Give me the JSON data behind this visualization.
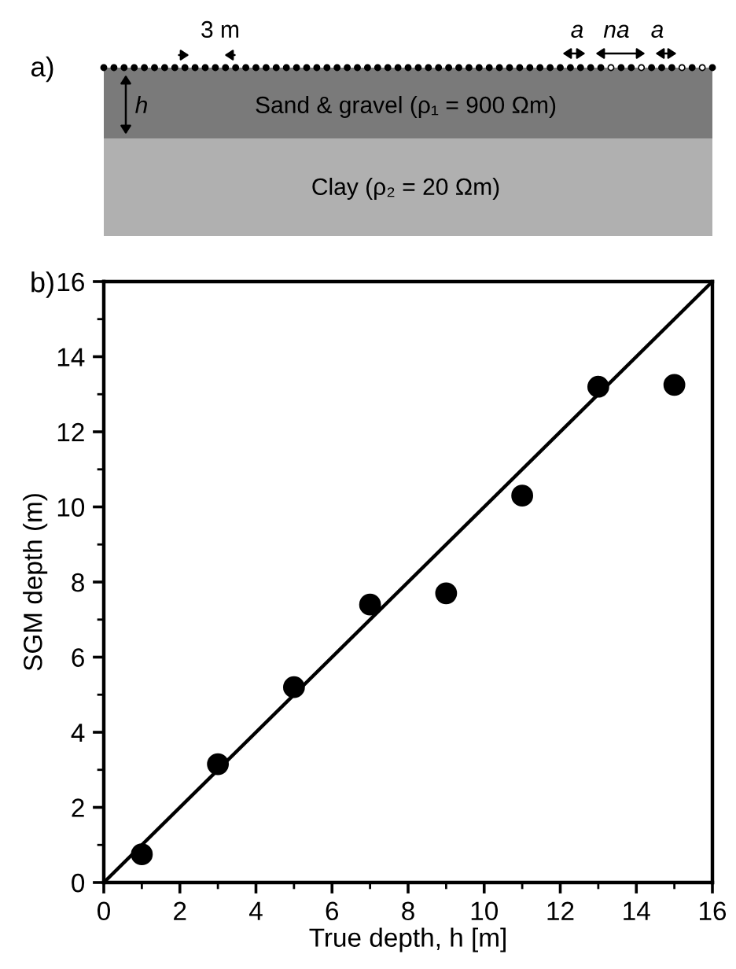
{
  "chart_data": [
    {
      "type": "other",
      "annotations": [
        "a)",
        "3 m",
        "h",
        "Sand & gravel (ρ₁ = 900 Ωm)",
        "Clay (ρ₂ = 20 Ωm)",
        "a",
        "na",
        "a"
      ]
    },
    {
      "type": "scatter",
      "annotations": [
        "b)"
      ],
      "xlabel": "True depth, h [m]",
      "ylabel": "SGM depth (m)",
      "xlim": [
        0,
        16
      ],
      "ylim": [
        0,
        16
      ],
      "xticks": [
        0,
        2,
        4,
        6,
        8,
        10,
        12,
        14,
        16
      ],
      "yticks": [
        0,
        2,
        4,
        6,
        8,
        10,
        12,
        14,
        16
      ],
      "grid": false,
      "marker": "circle",
      "series": [
        {
          "type": "scatter",
          "color": "#000000",
          "x": [
            1,
            3,
            5,
            7,
            9,
            11,
            13,
            15
          ],
          "values": [
            0.75,
            3.15,
            5.2,
            7.4,
            7.7,
            10.3,
            13.2,
            13.25
          ]
        },
        {
          "type": "line",
          "color": "#000000",
          "x": [
            0,
            16
          ],
          "values": [
            0,
            16
          ],
          "line_style": "solid",
          "marker": "none"
        }
      ]
    }
  ]
}
